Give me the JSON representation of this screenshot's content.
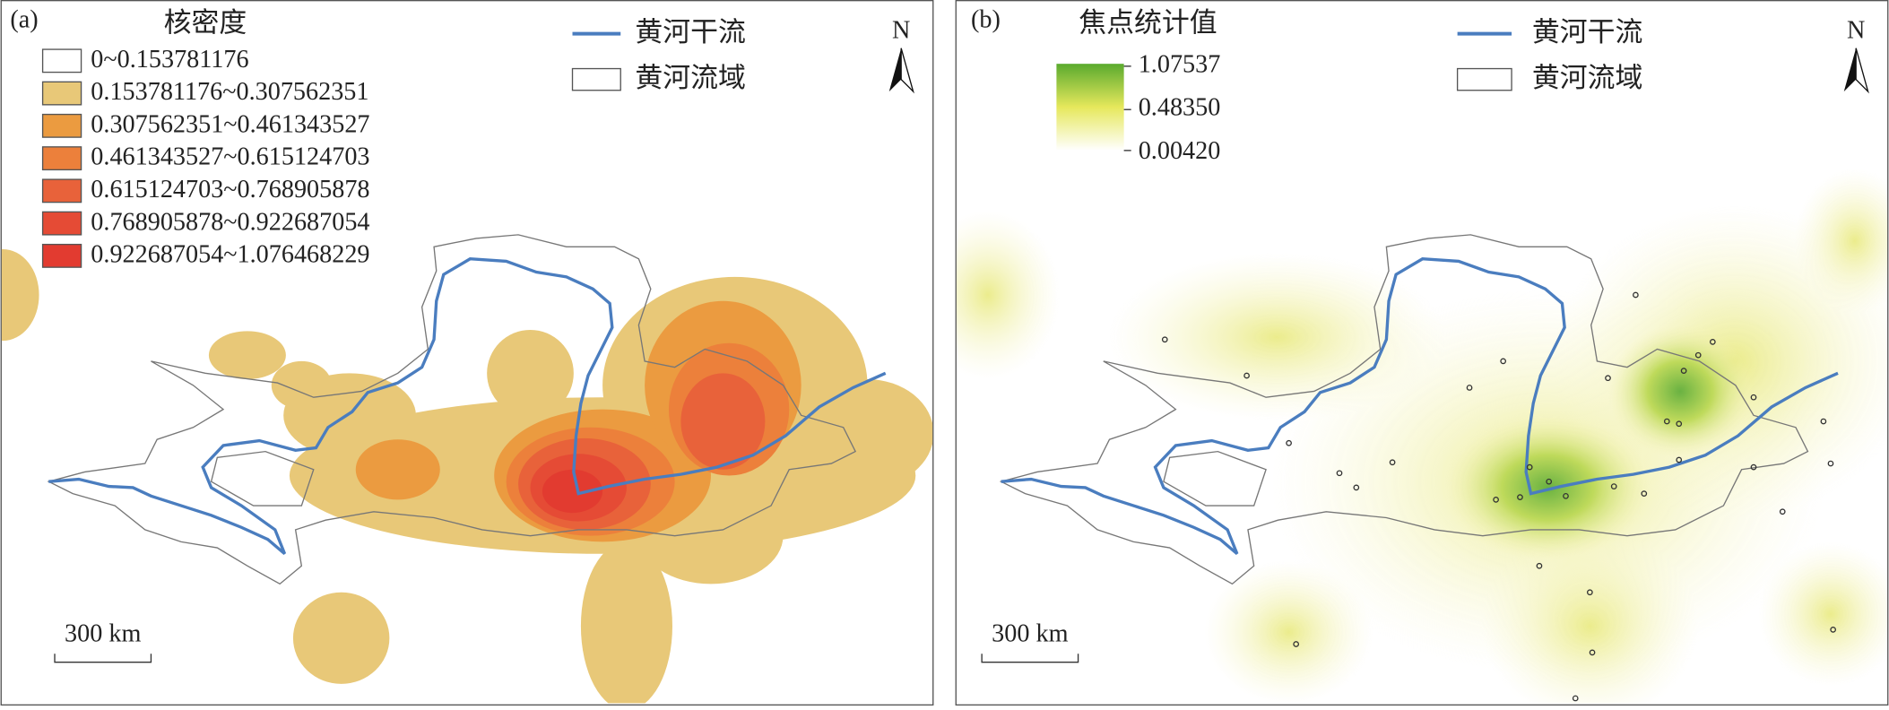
{
  "panel_a": {
    "label": "(a)",
    "legend_title": "核密度",
    "classes": [
      {
        "label": "0~0.153781176",
        "color": "#ffffff"
      },
      {
        "label": "0.153781176~0.307562351",
        "color": "#e8c878"
      },
      {
        "label": "0.307562351~0.461343527",
        "color": "#eb9b40"
      },
      {
        "label": "0.461343527~0.615124703",
        "color": "#ec803b"
      },
      {
        "label": "0.615124703~0.768905878",
        "color": "#e8623a"
      },
      {
        "label": "0.768905878~0.922687054",
        "color": "#e54b35"
      },
      {
        "label": "0.922687054~1.076468229",
        "color": "#e23b30"
      }
    ],
    "river_label": "黄河干流",
    "basin_label": "黄河流域",
    "north": "N",
    "scale": "300 km"
  },
  "panel_b": {
    "label": "(b)",
    "legend_title": "焦点统计值",
    "colorbar": {
      "max": "1.07537",
      "mid": "0.48350",
      "min": "0.00420",
      "colors": [
        "#5aaa2e",
        "#e6e85c",
        "#ffffff"
      ]
    },
    "river_label": "黄河干流",
    "basin_label": "黄河流域",
    "north": "N",
    "scale": "300 km"
  }
}
